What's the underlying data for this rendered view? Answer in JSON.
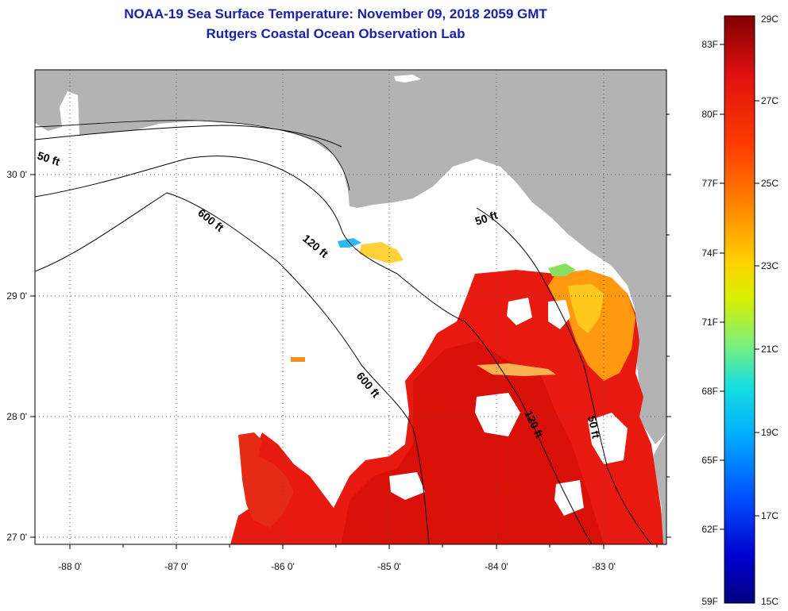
{
  "header": {
    "title": "NOAA-19 Sea Surface Temperature:  November 09, 2018 2059 GMT",
    "subtitle": "Rutgers Coastal Ocean Observation Lab"
  },
  "map": {
    "longitude_ticks": [
      "-88 0'",
      "-87 0'",
      "-86 0'",
      "-85 0'",
      "-84 0'",
      "-83 0'"
    ],
    "latitude_ticks": [
      "30 0'",
      "29 0'",
      "28 0'",
      "27 0'"
    ],
    "depth_contour_labels": [
      "50 ft",
      "600 ft",
      "120 ft",
      "50 ft",
      "600 ft",
      "120 ft",
      "50 ft"
    ],
    "colors": {
      "land": "#b3b3b3",
      "no_data": "#ffffff",
      "contour": "#000000"
    }
  },
  "colorbar": {
    "fahrenheit_labels": [
      "83F",
      "80F",
      "77F",
      "74F",
      "71F",
      "68F",
      "65F",
      "62F",
      "59F"
    ],
    "celsius_labels": [
      "29C",
      "27C",
      "25C",
      "23C",
      "21C",
      "19C",
      "17C",
      "15C"
    ],
    "gradient_colors": [
      "#800000",
      "#e01010",
      "#ff3b00",
      "#ff8a00",
      "#ffd200",
      "#d8f000",
      "#7cf07c",
      "#17e0e0",
      "#00a8ff",
      "#0050ff",
      "#0000d0",
      "#000080"
    ]
  }
}
